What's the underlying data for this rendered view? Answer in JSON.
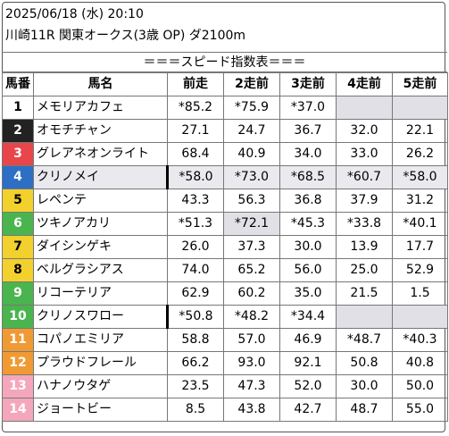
{
  "header": {
    "datetime": "2025/06/18 (水) 20:10",
    "race": "川崎11R 関東オークス(3歳 OP) ダ2100m"
  },
  "index_title": "＝＝＝スピード指数表＝＝＝",
  "columns": [
    "馬番",
    "馬名",
    "前走",
    "2走前",
    "3走前",
    "4走前",
    "5走前"
  ],
  "colors": {
    "1": "#ffffff",
    "2": "#222222",
    "3": "#e8464b",
    "4": "#2d6fc4",
    "5": "#f2d02e",
    "6": "#4ab54e",
    "7": "#f09a34",
    "8": "#f4a7bc"
  },
  "rows": [
    {
      "no": "1",
      "name": "メモリアカフェ",
      "v": [
        "*85.2",
        "*75.9",
        "*37.0",
        "",
        ""
      ]
    },
    {
      "no": "2",
      "name": "オモチチャン",
      "v": [
        "27.1",
        "24.7",
        "36.7",
        "32.0",
        "22.1"
      ]
    },
    {
      "no": "3",
      "name": "グレアネオンライト",
      "v": [
        "68.4",
        "40.9",
        "34.0",
        "33.0",
        "26.2"
      ]
    },
    {
      "no": "4",
      "name": "クリノメイ",
      "v": [
        "*58.0",
        "*73.0",
        "*68.5",
        "*60.7",
        "*58.0"
      ]
    },
    {
      "no": "5",
      "name": "レペンテ",
      "v": [
        "43.3",
        "56.3",
        "36.8",
        "37.9",
        "31.2"
      ]
    },
    {
      "no": "6",
      "name": "ツキノアカリ",
      "v": [
        "*51.3",
        "*72.1",
        "*45.3",
        "*33.8",
        "*40.1"
      ]
    },
    {
      "no": "7",
      "name": "ダイシンゲキ",
      "v": [
        "26.0",
        "37.3",
        "30.0",
        "13.9",
        "17.7"
      ]
    },
    {
      "no": "8",
      "name": "ベルグラシアス",
      "v": [
        "74.0",
        "65.2",
        "56.0",
        "25.0",
        "52.9"
      ]
    },
    {
      "no": "9",
      "name": "リコーテリア",
      "v": [
        "62.9",
        "60.2",
        "35.0",
        "21.5",
        "1.5"
      ]
    },
    {
      "no": "10",
      "name": "クリノスワロー",
      "v": [
        "*50.8",
        "*48.2",
        "*34.4",
        "",
        ""
      ]
    },
    {
      "no": "11",
      "name": "コパノエミリア",
      "v": [
        "58.8",
        "57.0",
        "46.9",
        "*48.7",
        "*40.3"
      ]
    },
    {
      "no": "12",
      "name": "プラウドフレール",
      "v": [
        "66.2",
        "93.0",
        "92.1",
        "50.8",
        "40.8"
      ]
    },
    {
      "no": "13",
      "name": "ハナノウタゲ",
      "v": [
        "23.5",
        "47.3",
        "52.0",
        "30.0",
        "50.0"
      ]
    },
    {
      "no": "14",
      "name": "ジョートビー",
      "v": [
        "8.5",
        "43.8",
        "42.7",
        "48.7",
        "55.0"
      ]
    }
  ]
}
